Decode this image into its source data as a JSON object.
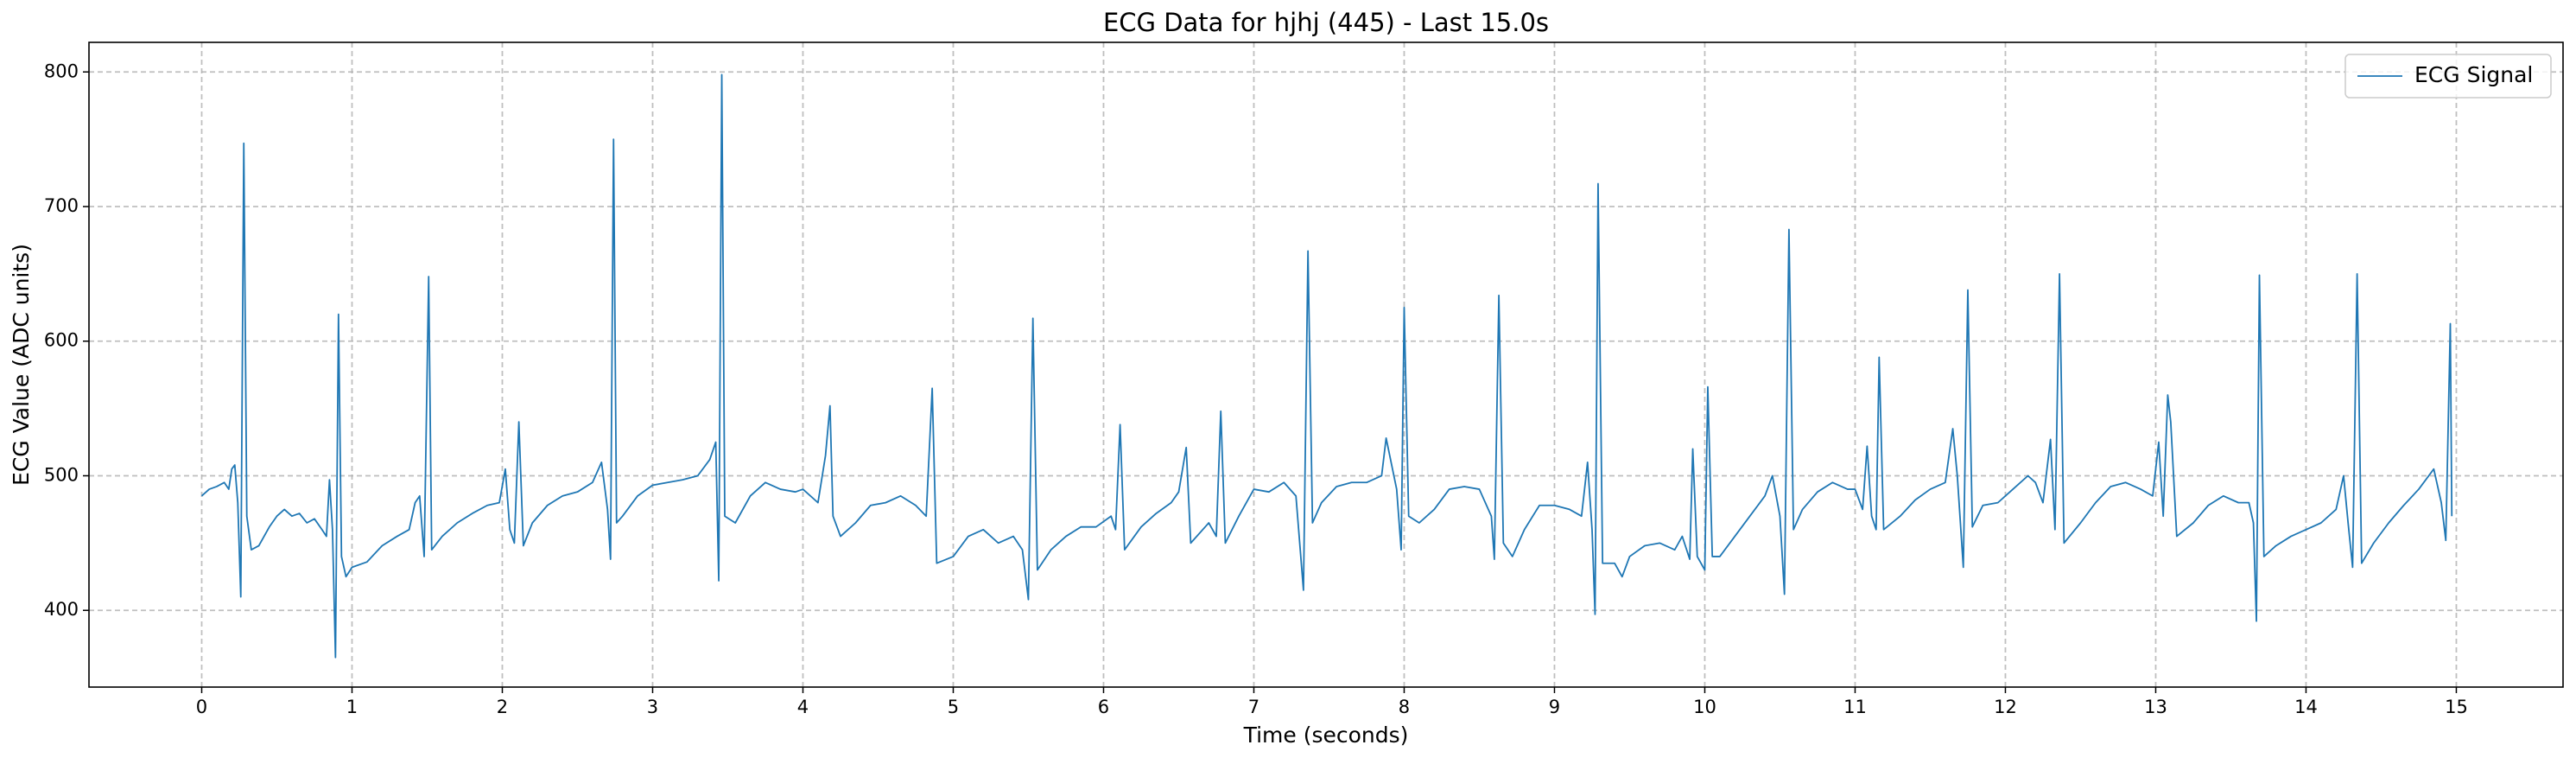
{
  "chart_data": {
    "type": "line",
    "title": "ECG Data for hjhj (445) - Last 15.0s",
    "xlabel": "Time (seconds)",
    "ylabel": "ECG Value (ADC units)",
    "x": [
      0,
      0.05,
      0.1,
      0.15,
      0.18,
      0.2,
      0.22,
      0.24,
      0.26,
      0.28,
      0.3,
      0.33,
      0.38,
      0.45,
      0.5,
      0.55,
      0.6,
      0.65,
      0.7,
      0.75,
      0.8,
      0.83,
      0.85,
      0.87,
      0.89,
      0.91,
      0.93,
      0.96,
      1.0,
      1.1,
      1.2,
      1.3,
      1.38,
      1.42,
      1.45,
      1.48,
      1.51,
      1.53,
      1.6,
      1.7,
      1.8,
      1.9,
      1.98,
      2.02,
      2.05,
      2.08,
      2.11,
      2.14,
      2.2,
      2.3,
      2.4,
      2.5,
      2.6,
      2.66,
      2.7,
      2.72,
      2.74,
      2.76,
      2.8,
      2.9,
      3.0,
      3.1,
      3.2,
      3.3,
      3.38,
      3.42,
      3.44,
      3.46,
      3.48,
      3.55,
      3.65,
      3.75,
      3.85,
      3.95,
      4.0,
      4.1,
      4.15,
      4.18,
      4.2,
      4.25,
      4.35,
      4.45,
      4.55,
      4.65,
      4.75,
      4.82,
      4.86,
      4.89,
      5.0,
      5.1,
      5.2,
      5.3,
      5.4,
      5.46,
      5.5,
      5.53,
      5.56,
      5.65,
      5.75,
      5.85,
      5.95,
      6.05,
      6.08,
      6.11,
      6.14,
      6.25,
      6.35,
      6.45,
      6.5,
      6.55,
      6.58,
      6.7,
      6.75,
      6.78,
      6.81,
      6.9,
      7.0,
      7.1,
      7.2,
      7.28,
      7.33,
      7.36,
      7.39,
      7.45,
      7.55,
      7.65,
      7.75,
      7.85,
      7.88,
      7.95,
      7.98,
      8.0,
      8.03,
      8.1,
      8.2,
      8.3,
      8.4,
      8.5,
      8.58,
      8.6,
      8.63,
      8.66,
      8.72,
      8.8,
      8.9,
      9.0,
      9.1,
      9.18,
      9.22,
      9.25,
      9.27,
      9.29,
      9.32,
      9.4,
      9.45,
      9.5,
      9.6,
      9.7,
      9.8,
      9.85,
      9.9,
      9.92,
      9.95,
      10.0,
      10.02,
      10.05,
      10.1,
      10.2,
      10.3,
      10.4,
      10.45,
      10.5,
      10.53,
      10.56,
      10.59,
      10.65,
      10.75,
      10.85,
      10.95,
      11.0,
      11.05,
      11.08,
      11.11,
      11.14,
      11.16,
      11.19,
      11.3,
      11.4,
      11.5,
      11.6,
      11.65,
      11.68,
      11.72,
      11.75,
      11.78,
      11.85,
      11.95,
      12.05,
      12.15,
      12.2,
      12.25,
      12.3,
      12.33,
      12.36,
      12.39,
      12.5,
      12.6,
      12.7,
      12.8,
      12.9,
      12.98,
      13.02,
      13.05,
      13.08,
      13.1,
      13.14,
      13.25,
      13.35,
      13.45,
      13.55,
      13.62,
      13.65,
      13.67,
      13.69,
      13.72,
      13.8,
      13.9,
      14.0,
      14.1,
      14.2,
      14.25,
      14.28,
      14.31,
      14.34,
      14.37,
      14.45,
      14.55,
      14.65,
      14.75,
      14.85,
      14.9,
      14.93,
      14.96,
      14.97
    ],
    "series": [
      {
        "name": "ECG Signal",
        "color": "#1f77b4",
        "values": [
          485,
          490,
          492,
          495,
          490,
          505,
          508,
          480,
          410,
          747,
          470,
          445,
          448,
          462,
          470,
          475,
          470,
          472,
          465,
          468,
          460,
          455,
          497,
          460,
          365,
          620,
          440,
          425,
          432,
          436,
          448,
          455,
          460,
          480,
          485,
          440,
          648,
          445,
          455,
          465,
          472,
          478,
          480,
          505,
          460,
          450,
          540,
          448,
          465,
          478,
          485,
          488,
          495,
          510,
          475,
          438,
          750,
          465,
          470,
          485,
          493,
          495,
          497,
          500,
          512,
          525,
          422,
          798,
          470,
          465,
          485,
          495,
          490,
          488,
          490,
          480,
          515,
          552,
          470,
          455,
          465,
          478,
          480,
          485,
          478,
          470,
          565,
          435,
          440,
          455,
          460,
          450,
          455,
          445,
          408,
          617,
          430,
          445,
          455,
          462,
          462,
          470,
          460,
          538,
          445,
          462,
          472,
          480,
          488,
          521,
          450,
          465,
          455,
          548,
          450,
          470,
          490,
          488,
          495,
          485,
          415,
          667,
          465,
          480,
          492,
          495,
          495,
          500,
          528,
          490,
          445,
          625,
          470,
          465,
          475,
          490,
          492,
          490,
          470,
          438,
          634,
          450,
          440,
          460,
          478,
          478,
          475,
          470,
          510,
          460,
          397,
          717,
          435,
          435,
          425,
          440,
          448,
          450,
          445,
          455,
          438,
          520,
          440,
          430,
          566,
          440,
          440,
          455,
          470,
          485,
          500,
          470,
          412,
          683,
          460,
          475,
          488,
          495,
          490,
          490,
          475,
          522,
          470,
          460,
          588,
          460,
          470,
          482,
          490,
          495,
          535,
          500,
          432,
          638,
          462,
          478,
          480,
          490,
          500,
          495,
          480,
          527,
          460,
          650,
          450,
          465,
          480,
          492,
          495,
          490,
          485,
          525,
          470,
          560,
          540,
          455,
          465,
          478,
          485,
          480,
          480,
          465,
          392,
          649,
          440,
          448,
          455,
          460,
          465,
          475,
          500,
          465,
          432,
          650,
          435,
          450,
          465,
          478,
          490,
          505,
          480,
          452,
          613,
          470
        ]
      }
    ],
    "xlim": [
      -0.75,
      15.71
    ],
    "ylim": [
      343,
      822
    ],
    "xticks": [
      0,
      1,
      2,
      3,
      4,
      5,
      6,
      7,
      8,
      9,
      10,
      11,
      12,
      13,
      14,
      15
    ],
    "yticks": [
      400,
      500,
      600,
      700,
      800
    ],
    "grid": true,
    "legend": "upper right"
  }
}
